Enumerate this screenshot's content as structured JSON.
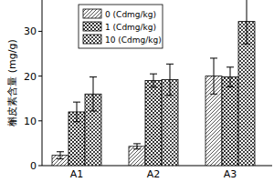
{
  "chart_data": {
    "type": "bar",
    "y_label": "槲皮素含量 (mg/g)",
    "categories": [
      "A1",
      "A2",
      "A3"
    ],
    "series": [
      {
        "name": "0 (Cdmg/kg)",
        "color": "#555555",
        "values": [
          2.3,
          4.3,
          20.0
        ],
        "errors": [
          0.8,
          0.6,
          4.0
        ]
      },
      {
        "name": "1 (Cdmg/kg)",
        "color": "#333333",
        "values": [
          12.0,
          19.0,
          19.8
        ],
        "errors": [
          2.2,
          1.5,
          2.2
        ]
      },
      {
        "name": "10 (Cdmg/kg)",
        "color": "#444444",
        "values": [
          16.0,
          19.2,
          32.2
        ],
        "errors": [
          3.8,
          3.5,
          5.0
        ]
      }
    ],
    "ylim": [
      0,
      37
    ],
    "yticks": [
      0,
      10,
      20,
      30
    ],
    "legend": "upper left",
    "grid": false
  }
}
